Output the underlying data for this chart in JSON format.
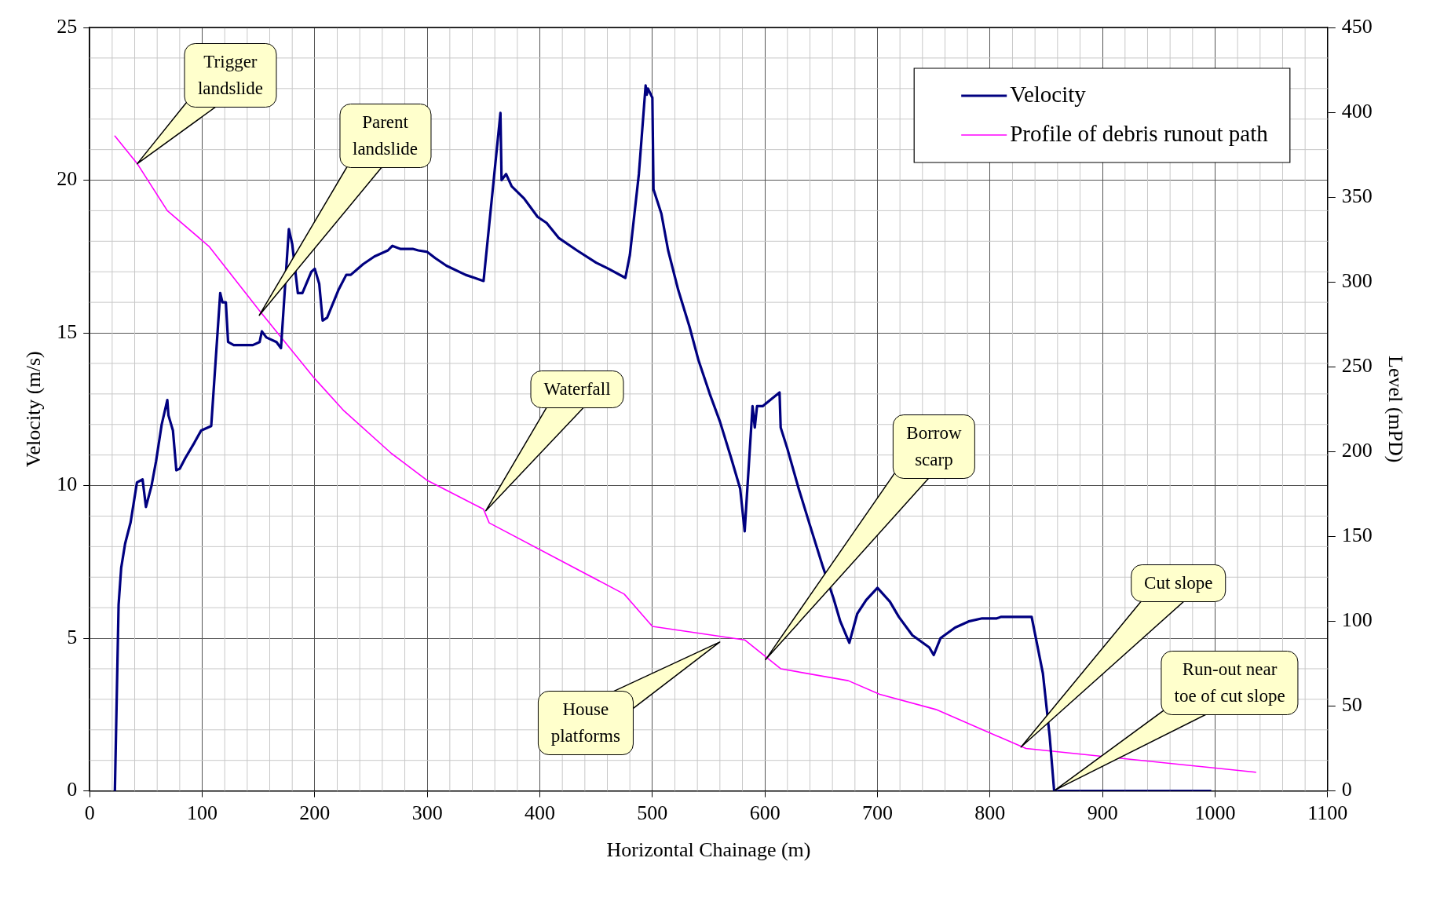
{
  "chart_data": {
    "type": "line",
    "xlabel": "Horizontal Chainage (m)",
    "ylabel": "Velocity (m/s)",
    "y2label": "Level (mPD)",
    "xlim": [
      0,
      1100
    ],
    "xticks": [
      0,
      100,
      200,
      300,
      400,
      500,
      600,
      700,
      800,
      900,
      1000,
      1100
    ],
    "ylim": [
      0,
      25
    ],
    "yticks": [
      0,
      5,
      10,
      15,
      20,
      25
    ],
    "y2lim": [
      0,
      450
    ],
    "y2ticks": [
      0,
      50,
      100,
      150,
      200,
      250,
      300,
      350,
      400,
      450
    ],
    "grid": true,
    "legend": "top right",
    "marker": "none",
    "line_style": "solid",
    "series": [
      {
        "name": "Velocity",
        "color": "#000080",
        "x": [
          22.4,
          25.7,
          28,
          31.5,
          36.4,
          42,
          47,
          50,
          55,
          59,
          64,
          69,
          70,
          74,
          77,
          80,
          85,
          93,
          99,
          108,
          116,
          118,
          121,
          123,
          128,
          145,
          151,
          153,
          157,
          166,
          170,
          177,
          180,
          185,
          189,
          197,
          200,
          204,
          207,
          211,
          221,
          228,
          232,
          243,
          253,
          265,
          269,
          276,
          287,
          292,
          300,
          307,
          317,
          334,
          342,
          350,
          365,
          366,
          370,
          375,
          386,
          398,
          406,
          417,
          433,
          450,
          461,
          476,
          480,
          488,
          494,
          495,
          496,
          500,
          501,
          508,
          514,
          523,
          533,
          541,
          551,
          560,
          570,
          578,
          582,
          589,
          591,
          593,
          598,
          613,
          614,
          620,
          630,
          640,
          651,
          661,
          667,
          675,
          682,
          690,
          700,
          711,
          719,
          731,
          746,
          750,
          756,
          769,
          781,
          793,
          806,
          810,
          837,
          847,
          853,
          857,
          996
        ],
        "values": [
          0,
          6.1,
          7.3,
          8.1,
          8.8,
          10.1,
          10.2,
          9.3,
          10.0,
          10.8,
          12.0,
          12.8,
          12.3,
          11.8,
          10.5,
          10.55,
          10.9,
          11.4,
          11.8,
          11.95,
          16.3,
          16.0,
          16.0,
          14.7,
          14.6,
          14.6,
          14.7,
          15.05,
          14.85,
          14.7,
          14.5,
          18.4,
          17.9,
          16.3,
          16.3,
          17.0,
          17.1,
          16.6,
          15.4,
          15.5,
          16.4,
          16.9,
          16.9,
          17.25,
          17.5,
          17.7,
          17.85,
          17.75,
          17.75,
          17.7,
          17.65,
          17.45,
          17.2,
          16.9,
          16.8,
          16.7,
          22.2,
          20.0,
          20.2,
          19.8,
          19.4,
          18.8,
          18.6,
          18.1,
          17.7,
          17.3,
          17.1,
          16.8,
          17.55,
          20.2,
          23.1,
          22.8,
          23.0,
          22.7,
          19.7,
          18.9,
          17.7,
          16.4,
          15.2,
          14.1,
          13.0,
          12.1,
          10.9,
          9.9,
          8.5,
          12.6,
          11.9,
          12.6,
          12.6,
          13.05,
          11.9,
          11.2,
          9.9,
          8.7,
          7.4,
          6.3,
          5.55,
          4.85,
          5.8,
          6.25,
          6.65,
          6.2,
          5.7,
          5.1,
          4.7,
          4.45,
          5.0,
          5.35,
          5.55,
          5.65,
          5.65,
          5.7,
          5.7,
          3.85,
          1.8,
          0,
          0
        ]
      },
      {
        "name": "Profile of debris runout path",
        "color": "#ff00ff",
        "axis": "y2",
        "x": [
          22.4,
          42,
          69,
          106,
          151,
          200,
          226,
          268,
          300,
          350,
          355,
          475,
          500,
          582,
          614,
          674,
          702,
          752,
          832,
          1036
        ],
        "values": [
          386,
          370,
          342,
          321,
          283,
          243,
          224,
          199,
          183,
          166,
          158,
          116,
          97,
          89,
          72,
          65,
          57,
          48,
          25,
          11
        ]
      }
    ],
    "annotations": [
      "Trigger\nlandslide",
      "Parent\nlandslide",
      "Waterfall",
      "House\nplatforms",
      "Borrow\nscarp",
      "Cut slope",
      "Run-out near\ntoe of cut slope"
    ]
  }
}
